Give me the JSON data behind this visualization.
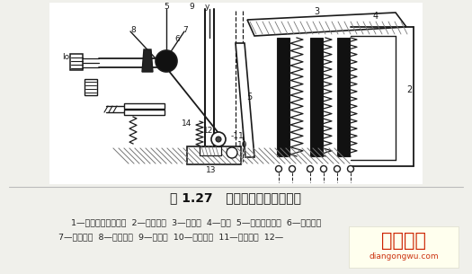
{
  "bg_color": "#f0f0eb",
  "title": "图 1.27   热继电器的结构原理图",
  "caption_line1": "1—双金属片固定支点  2—双金属片  3—热元件  4—导板  5—补偿双金属片  6—常闭触点",
  "caption_line2": "7—常开触点  8—复位联钉  9—动触点  10—复位按鈕  11—调节旋鈕  12—",
  "watermark_text": "电工之屋",
  "watermark_sub": "diangongwu.com",
  "lc": "#444444",
  "dc": "#1a1a1a",
  "hc": "#777777",
  "wc": "#ffffff",
  "figsize": [
    5.25,
    3.05
  ],
  "dpi": 100
}
